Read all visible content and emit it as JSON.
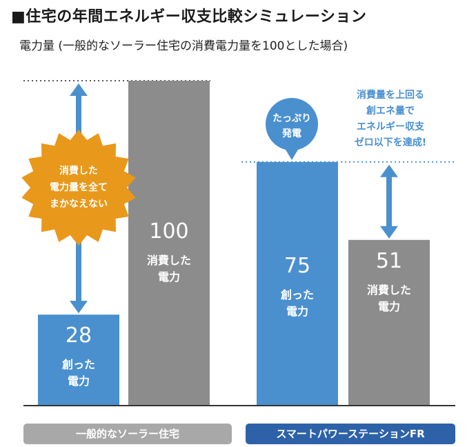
{
  "title": "■住宅の年間エネルギー収支比較シミュレーション",
  "subtitle": "電力量 (一般的なソーラー住宅の消費電力量を100とした場合)",
  "colors": {
    "blue": "#4a90cf",
    "gray": "#8c8c8c",
    "orange": "#e8981a",
    "light_gray": "#a8a8a8",
    "dark_blue": "#2e62a8"
  },
  "chart_data": {
    "type": "bar",
    "ylim": [
      0,
      100
    ],
    "groups": [
      {
        "label": "一般的なソーラー住宅",
        "bars": [
          {
            "value": 28,
            "value_text": "28",
            "label_lines": [
              "創った",
              "電力"
            ],
            "color": "blue"
          },
          {
            "value": 100,
            "value_text": "100",
            "label_lines": [
              "消費した",
              "電力"
            ],
            "color": "gray"
          }
        ]
      },
      {
        "label": "スマートパワーステーションFR",
        "bars": [
          {
            "value": 75,
            "value_text": "75",
            "label_lines": [
              "創った",
              "電力"
            ],
            "color": "blue"
          },
          {
            "value": 51,
            "value_text": "51",
            "label_lines": [
              "消費した",
              "電力"
            ],
            "color": "gray"
          }
        ]
      }
    ],
    "annotations": {
      "badge_orange": [
        "消費した",
        "電力量を全て",
        "まかなえない"
      ],
      "badge_blue": [
        "たっぷり",
        "発電"
      ],
      "note_blue": [
        "消費量を上回る",
        "創エネ量で",
        "エネルギー収支",
        "ゼロ以下を達成!"
      ]
    }
  }
}
